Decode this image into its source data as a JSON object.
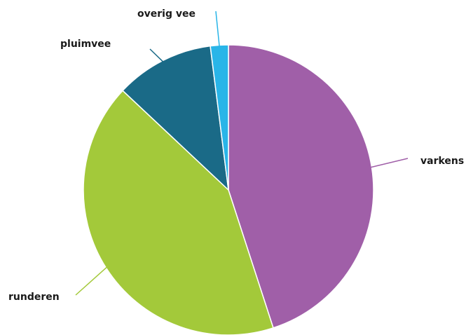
{
  "chart_data": {
    "type": "pie",
    "slices": [
      {
        "label": "varkens",
        "value": 45,
        "color": "#a05fa8"
      },
      {
        "label": "runderen",
        "value": 42,
        "color": "#a3c93a"
      },
      {
        "label": "pluimvee",
        "value": 11,
        "color": "#1a6a87"
      },
      {
        "label": "overig vee",
        "value": 2,
        "color": "#29b5e8"
      }
    ],
    "legend": "none",
    "labels": "outside-with-leader-lines"
  }
}
